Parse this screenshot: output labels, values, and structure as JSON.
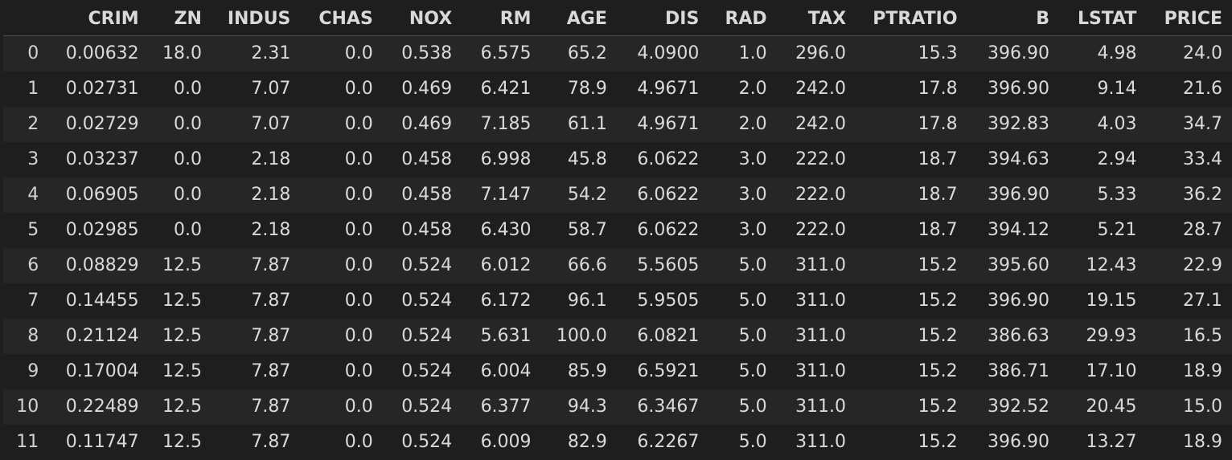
{
  "columns": [
    "",
    "CRIM",
    "ZN",
    "INDUS",
    "CHAS",
    "NOX",
    "RM",
    "AGE",
    "DIS",
    "RAD",
    "TAX",
    "PTRATIO",
    "B",
    "LSTAT",
    "PRICE"
  ],
  "rows": [
    [
      "0",
      "0.00632",
      "18.0",
      "2.31",
      "0.0",
      "0.538",
      "6.575",
      "65.2",
      "4.0900",
      "1.0",
      "296.0",
      "15.3",
      "396.90",
      "4.98",
      "24.0"
    ],
    [
      "1",
      "0.02731",
      "0.0",
      "7.07",
      "0.0",
      "0.469",
      "6.421",
      "78.9",
      "4.9671",
      "2.0",
      "242.0",
      "17.8",
      "396.90",
      "9.14",
      "21.6"
    ],
    [
      "2",
      "0.02729",
      "0.0",
      "7.07",
      "0.0",
      "0.469",
      "7.185",
      "61.1",
      "4.9671",
      "2.0",
      "242.0",
      "17.8",
      "392.83",
      "4.03",
      "34.7"
    ],
    [
      "3",
      "0.03237",
      "0.0",
      "2.18",
      "0.0",
      "0.458",
      "6.998",
      "45.8",
      "6.0622",
      "3.0",
      "222.0",
      "18.7",
      "394.63",
      "2.94",
      "33.4"
    ],
    [
      "4",
      "0.06905",
      "0.0",
      "2.18",
      "0.0",
      "0.458",
      "7.147",
      "54.2",
      "6.0622",
      "3.0",
      "222.0",
      "18.7",
      "396.90",
      "5.33",
      "36.2"
    ],
    [
      "5",
      "0.02985",
      "0.0",
      "2.18",
      "0.0",
      "0.458",
      "6.430",
      "58.7",
      "6.0622",
      "3.0",
      "222.0",
      "18.7",
      "394.12",
      "5.21",
      "28.7"
    ],
    [
      "6",
      "0.08829",
      "12.5",
      "7.87",
      "0.0",
      "0.524",
      "6.012",
      "66.6",
      "5.5605",
      "5.0",
      "311.0",
      "15.2",
      "395.60",
      "12.43",
      "22.9"
    ],
    [
      "7",
      "0.14455",
      "12.5",
      "7.87",
      "0.0",
      "0.524",
      "6.172",
      "96.1",
      "5.9505",
      "5.0",
      "311.0",
      "15.2",
      "396.90",
      "19.15",
      "27.1"
    ],
    [
      "8",
      "0.21124",
      "12.5",
      "7.87",
      "0.0",
      "0.524",
      "5.631",
      "100.0",
      "6.0821",
      "5.0",
      "311.0",
      "15.2",
      "386.63",
      "29.93",
      "16.5"
    ],
    [
      "9",
      "0.17004",
      "12.5",
      "7.87",
      "0.0",
      "0.524",
      "6.004",
      "85.9",
      "6.5921",
      "5.0",
      "311.0",
      "15.2",
      "386.71",
      "17.10",
      "18.9"
    ],
    [
      "10",
      "0.22489",
      "12.5",
      "7.87",
      "0.0",
      "0.524",
      "6.377",
      "94.3",
      "6.3467",
      "5.0",
      "311.0",
      "15.2",
      "392.52",
      "20.45",
      "15.0"
    ],
    [
      "11",
      "0.11747",
      "12.5",
      "7.87",
      "0.0",
      "0.524",
      "6.009",
      "82.9",
      "6.2267",
      "5.0",
      "311.0",
      "15.2",
      "396.90",
      "13.27",
      "18.9"
    ]
  ]
}
